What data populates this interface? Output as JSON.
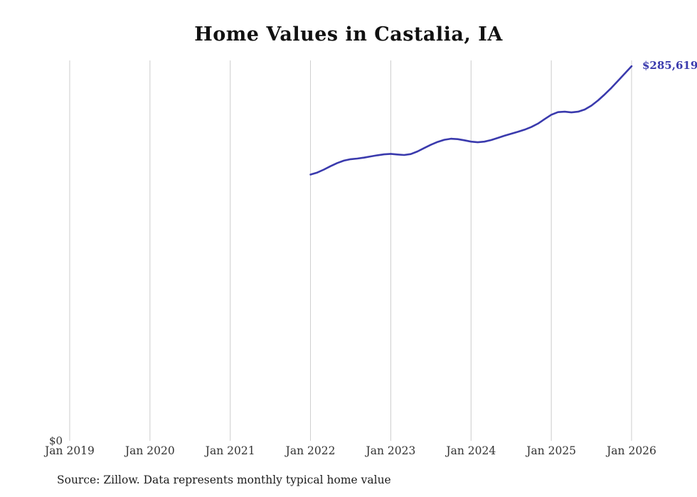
{
  "chart_data": {
    "type": "line",
    "title": "Home Values in Castalia, IA",
    "ylabel": "",
    "xlabel": "",
    "ylim": [
      0,
      290000
    ],
    "xlim_years": [
      2019,
      2026
    ],
    "grid": "vertical-only",
    "legend": "none",
    "line_color": "#3a3aad",
    "grid_color": "#cccccc",
    "y_zero_label": "$0",
    "end_label": "$285,619",
    "end_value": 285619,
    "x_ticks": [
      {
        "label": "Jan 2019",
        "year": 2019
      },
      {
        "label": "Jan 2020",
        "year": 2020
      },
      {
        "label": "Jan 2021",
        "year": 2021
      },
      {
        "label": "Jan 2022",
        "year": 2022
      },
      {
        "label": "Jan 2023",
        "year": 2023
      },
      {
        "label": "Jan 2024",
        "year": 2024
      },
      {
        "label": "Jan 2025",
        "year": 2025
      },
      {
        "label": "Jan 2026",
        "year": 2026
      }
    ],
    "points": [
      [
        "2022-01",
        203000
      ],
      [
        "2022-02",
        204500
      ],
      [
        "2022-03",
        206800
      ],
      [
        "2022-04",
        209400
      ],
      [
        "2022-05",
        211800
      ],
      [
        "2022-06",
        213600
      ],
      [
        "2022-07",
        214700
      ],
      [
        "2022-08",
        215200
      ],
      [
        "2022-09",
        215900
      ],
      [
        "2022-10",
        216800
      ],
      [
        "2022-11",
        217700
      ],
      [
        "2022-12",
        218400
      ],
      [
        "2023-01",
        218800
      ],
      [
        "2023-02",
        218300
      ],
      [
        "2023-03",
        217900
      ],
      [
        "2023-04",
        218600
      ],
      [
        "2023-05",
        220600
      ],
      [
        "2023-06",
        223200
      ],
      [
        "2023-07",
        225700
      ],
      [
        "2023-08",
        227900
      ],
      [
        "2023-09",
        229500
      ],
      [
        "2023-10",
        230300
      ],
      [
        "2023-11",
        230000
      ],
      [
        "2023-12",
        229100
      ],
      [
        "2024-01",
        228100
      ],
      [
        "2024-02",
        227600
      ],
      [
        "2024-03",
        228100
      ],
      [
        "2024-04",
        229300
      ],
      [
        "2024-05",
        230900
      ],
      [
        "2024-06",
        232600
      ],
      [
        "2024-07",
        234100
      ],
      [
        "2024-08",
        235600
      ],
      [
        "2024-09",
        237200
      ],
      [
        "2024-10",
        239200
      ],
      [
        "2024-11",
        241800
      ],
      [
        "2024-12",
        245200
      ],
      [
        "2025-01",
        248600
      ],
      [
        "2025-02",
        250600
      ],
      [
        "2025-03",
        250900
      ],
      [
        "2025-04",
        250400
      ],
      [
        "2025-05",
        250900
      ],
      [
        "2025-06",
        252600
      ],
      [
        "2025-07",
        255600
      ],
      [
        "2025-08",
        259600
      ],
      [
        "2025-09",
        264200
      ],
      [
        "2025-10",
        269200
      ],
      [
        "2025-11",
        274600
      ],
      [
        "2025-12",
        280100
      ],
      [
        "2026-01",
        285619
      ]
    ]
  },
  "footer": {
    "source_note": "Source: Zillow. Data represents monthly typical home value"
  }
}
